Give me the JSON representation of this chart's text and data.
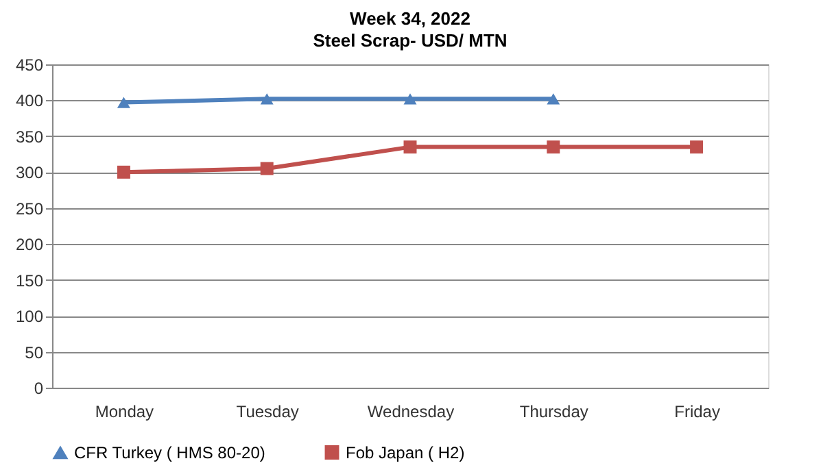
{
  "chart_data": {
    "type": "line",
    "title": "Week 34, 2022",
    "subtitle": "Steel Scrap- USD/ MTN",
    "categories": [
      "Monday",
      "Tuesday",
      "Wednesday",
      "Thursday",
      "Friday"
    ],
    "series": [
      {
        "name": "CFR Turkey ( HMS 80-20)",
        "color": "#4f81bd",
        "marker": "triangle",
        "values": [
          397,
          402,
          402,
          402,
          null
        ]
      },
      {
        "name": "Fob Japan ( H2)",
        "color": "#c0504d",
        "marker": "square",
        "values": [
          300,
          305,
          335,
          335,
          335
        ]
      }
    ],
    "ylim": [
      0,
      450
    ],
    "yticks": [
      0,
      50,
      100,
      150,
      200,
      250,
      300,
      350,
      400,
      450
    ],
    "grid": "y",
    "legend": "bottom",
    "line_style": "solid"
  }
}
